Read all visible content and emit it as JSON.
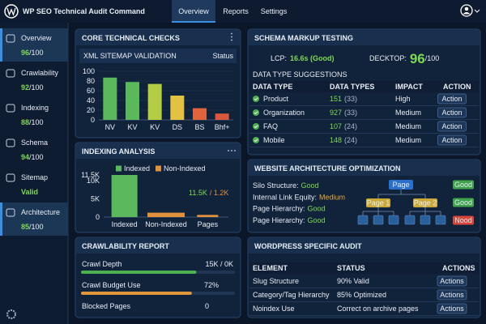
{
  "header": {
    "title": "WP SEO Technical Audit Command",
    "tabs": [
      {
        "label": "Overview",
        "active": true
      },
      {
        "label": "Reports"
      },
      {
        "label": "Settings"
      }
    ]
  },
  "sidebar": [
    {
      "label": "Overview",
      "score": 96,
      "max": "/100",
      "active": true
    },
    {
      "label": "Crawlability",
      "score": 92,
      "max": "/100"
    },
    {
      "label": "Indexing",
      "score": 88,
      "max": "/100"
    },
    {
      "label": "Schema",
      "score": 94,
      "max": "/100"
    },
    {
      "label": "Sitemap",
      "score": "Valid"
    },
    {
      "label": "Architecture",
      "score": 85,
      "max": "/100",
      "active": true
    }
  ],
  "core_checks": {
    "title": "CORE TECHNICAL CHECKS",
    "subtitle": "XML SITEMAP VALIDATION",
    "status": "Status",
    "chart": {
      "type": "bar",
      "categories": [
        "NV",
        "KV",
        "KV",
        "DS",
        "BS",
        "Bhf+"
      ],
      "values": [
        87,
        78,
        74,
        50,
        24,
        13
      ],
      "colors": [
        "#5cb85c",
        "#5cb85c",
        "#b5cc45",
        "#e3c243",
        "#e0643c",
        "#d9573a"
      ],
      "ylim": [
        0,
        100
      ],
      "yticks": [
        0,
        20,
        40,
        60,
        80,
        100
      ],
      "grid": true
    }
  },
  "indexing": {
    "title": "INDEXING ANALYSIS",
    "legend": [
      {
        "name": "Indexed",
        "color": "#5cb85c"
      },
      {
        "name": "Non-Indexed",
        "color": "#e0913c"
      }
    ],
    "chart": {
      "type": "bar",
      "categories": [
        "Indexed",
        "Non-Indexed",
        "Pages"
      ],
      "values": [
        11500,
        1200,
        600
      ],
      "colors": [
        "#5cb85c",
        "#e0913c",
        "#e0913c"
      ],
      "ylim": [
        0,
        11500
      ],
      "yticks": [
        0,
        {
          "value": 5000,
          "label": "5K"
        },
        {
          "value": 10000,
          "label": "10K"
        },
        {
          "value": 11500,
          "label": "11.5K"
        }
      ],
      "grid": false
    },
    "annotation": [
      "11.5K",
      "/ 1.2K"
    ]
  },
  "crawl": {
    "title": "CRAWLABILITY REPORT",
    "rows": [
      {
        "label": "Crawl Depth",
        "text": "15K / 0K",
        "bar": 75,
        "color": "#4caf50"
      },
      {
        "label": "Crawl Budget Use",
        "bar": 72,
        "bar_label": "72%",
        "color": "#e0963c"
      },
      {
        "label": "Blocked Pages",
        "count": 0
      }
    ]
  },
  "schema": {
    "title": "SCHEMA MARKUP TESTING",
    "lcp_label": "LCP:",
    "lcp_value": "16.6s (Good)",
    "desktop_label": "DECKTOP:",
    "desktop_score": 96,
    "desktop_max": "/100",
    "table_title": "DATA TYPE SUGGESTIONS",
    "columns": [
      "DATA TYPE",
      "DATA TYPES",
      "IMPACT",
      "ACTION"
    ],
    "rows": [
      {
        "type": "Product",
        "count": 151,
        "sub": "(33)",
        "impact": "High",
        "impact_color": "#e8553e",
        "action": "Action"
      },
      {
        "type": "Organization",
        "count": 927,
        "sub": "(33)",
        "impact": "Medium",
        "impact_color": "#e6a93c",
        "action": "Action"
      },
      {
        "type": "FAQ",
        "count": 107,
        "sub": "(24)",
        "impact": "Medium",
        "impact_color": "#e6a93c",
        "action": "Action"
      },
      {
        "type": "Mobile",
        "count": 148,
        "sub": "(24)",
        "impact": "Medium",
        "impact_color": "#e6a93c",
        "action": "Action"
      }
    ]
  },
  "architecture": {
    "title": "WEBSITE ARCHITECTURE OPTIMIZATION",
    "items": [
      {
        "label": "Silo Structure:",
        "value": "Good",
        "color": "#7ed957"
      },
      {
        "label": "Internal Link Equity:",
        "value": "Medium",
        "color": "#e6a93c"
      },
      {
        "label": "Page Hierarchy:",
        "value": "Good",
        "color": "#7ed957"
      },
      {
        "label": "Page Hierarchy:",
        "value": "Good",
        "color": "#7ed957"
      }
    ],
    "tree": {
      "root": "Page",
      "children": [
        "Page 1",
        "Page 2"
      ]
    },
    "badges": [
      {
        "label": "Good",
        "color": "#3fa34d"
      },
      {
        "label": "Good",
        "color": "#3fa34d"
      },
      {
        "label": "Nood",
        "color": "#d9453a"
      }
    ]
  },
  "wordpress": {
    "title": "WORDPRESS SPECIFIC AUDIT",
    "columns": [
      "ELEMENT",
      "STATUS",
      "ACTIONS"
    ],
    "rows": [
      {
        "element": "Slug Structure",
        "status": "90% Valid",
        "action": "Actions"
      },
      {
        "element": "Category/Tag Hierarchy",
        "status": "85% Optimized",
        "action": "Actions"
      },
      {
        "element": "Noindex Use",
        "status": "Correct on archive pages",
        "action": "Actions"
      }
    ]
  }
}
